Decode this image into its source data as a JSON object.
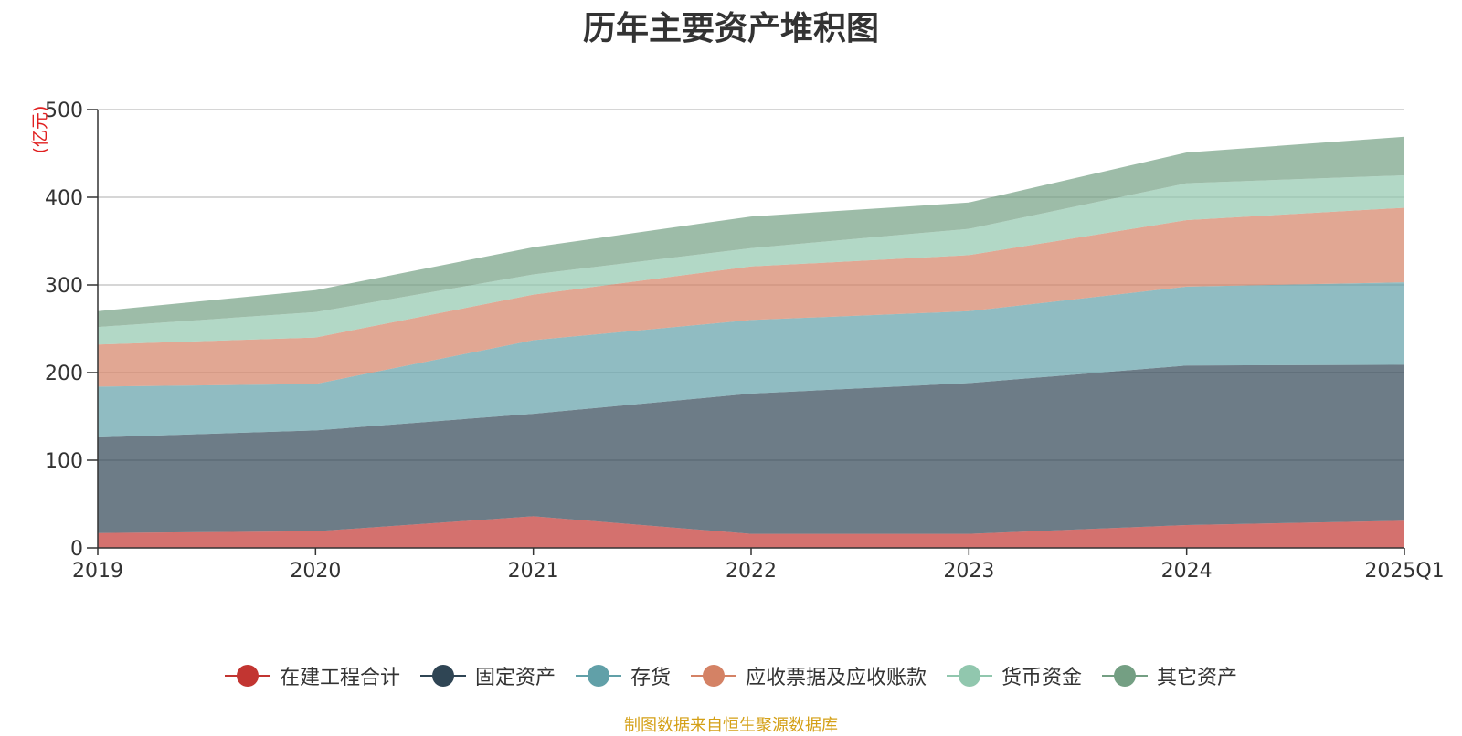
{
  "chart_data": {
    "type": "area",
    "stacked": true,
    "title": "历年主要资产堆积图",
    "unit_label": "(亿元)",
    "categories": [
      "2019",
      "2020",
      "2021",
      "2022",
      "2023",
      "2024",
      "2025Q1"
    ],
    "ylim": [
      0,
      500
    ],
    "yticks": [
      0,
      100,
      200,
      300,
      400,
      500
    ],
    "grid": true,
    "legend_position": "bottom",
    "series": [
      {
        "name": "在建工程合计",
        "color": "#c23531",
        "values": [
          17,
          19,
          36,
          16,
          16,
          26,
          31
        ]
      },
      {
        "name": "固定资产",
        "color": "#2f4554",
        "values": [
          109,
          115,
          117,
          160,
          172,
          182,
          178
        ]
      },
      {
        "name": "存货",
        "color": "#61a0a8",
        "values": [
          58,
          53,
          84,
          84,
          82,
          90,
          94
        ]
      },
      {
        "name": "应收票据及应收账款",
        "color": "#d48265",
        "values": [
          48,
          53,
          52,
          61,
          64,
          76,
          85
        ]
      },
      {
        "name": "货币资金",
        "color": "#91c7ae",
        "values": [
          20,
          29,
          23,
          21,
          30,
          42,
          37
        ]
      },
      {
        "name": "其它资产",
        "color": "#749f83",
        "values": [
          18,
          25,
          31,
          36,
          30,
          35,
          44
        ]
      }
    ]
  },
  "source_note": "制图数据来自恒生聚源数据库"
}
